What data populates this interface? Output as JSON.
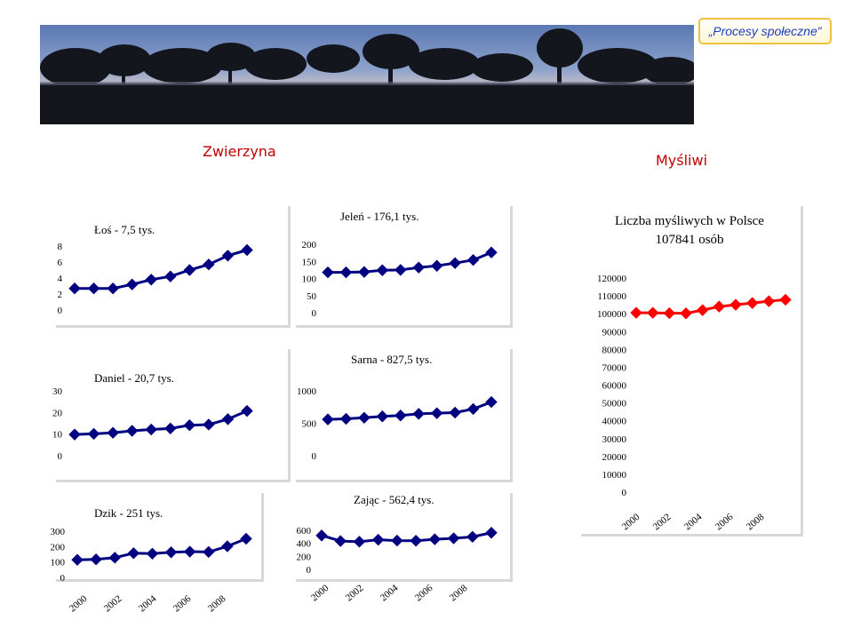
{
  "badge": {
    "label": "„Procesy społeczne”"
  },
  "headings": {
    "left": "Zwierzyna",
    "right": "Myśliwi"
  },
  "colors": {
    "series": "#000080",
    "hunters": "#ff0000",
    "heading": "#c00000",
    "badge_text": "#1f3dbf",
    "badge_border": "#f0c040"
  },
  "chart_data": [
    {
      "id": "los",
      "type": "line",
      "title": "Łoś - 7,5 tys.",
      "x": [
        2000,
        2001,
        2002,
        2003,
        2004,
        2005,
        2006,
        2007,
        2008,
        2009
      ],
      "y": [
        2.7,
        2.7,
        2.7,
        3.2,
        3.8,
        4.2,
        5.0,
        5.7,
        6.8,
        7.5
      ],
      "ylim": [
        0,
        8
      ],
      "yticks": [
        0,
        2,
        4,
        6,
        8
      ],
      "xtick_labels": []
    },
    {
      "id": "jelen",
      "type": "line",
      "title": "Jeleń - 176,1 tys.",
      "x": [
        2000,
        2001,
        2002,
        2003,
        2004,
        2005,
        2006,
        2007,
        2008,
        2009
      ],
      "y": [
        118,
        118,
        119,
        124,
        125,
        132,
        137,
        145,
        154,
        176.1
      ],
      "ylim": [
        0,
        200
      ],
      "yticks": [
        0,
        50,
        100,
        150,
        200
      ],
      "xtick_labels": []
    },
    {
      "id": "daniel",
      "type": "line",
      "title": "Daniel - 20,7 tys.",
      "x": [
        2000,
        2001,
        2002,
        2003,
        2004,
        2005,
        2006,
        2007,
        2008,
        2009
      ],
      "y": [
        9.8,
        10.1,
        10.6,
        11.5,
        12.1,
        12.6,
        14.1,
        14.4,
        16.9,
        20.7
      ],
      "ylim": [
        0,
        30
      ],
      "yticks": [
        0,
        10,
        20,
        30
      ],
      "xtick_labels": []
    },
    {
      "id": "sarna",
      "type": "line",
      "title": "Sarna - 827,5 tys.",
      "x": [
        2000,
        2001,
        2002,
        2003,
        2004,
        2005,
        2006,
        2007,
        2008,
        2009
      ],
      "y": [
        560,
        568,
        585,
        606,
        620,
        645,
        655,
        664,
        720,
        827.5
      ],
      "ylim": [
        0,
        1000
      ],
      "yticks": [
        0,
        500,
        1000
      ],
      "xtick_labels": []
    },
    {
      "id": "dzik",
      "type": "line",
      "title": "Dzik - 251 tys.",
      "x": [
        2000,
        2001,
        2002,
        2003,
        2004,
        2005,
        2006,
        2007,
        2008,
        2009
      ],
      "y": [
        114,
        117,
        128,
        157,
        154,
        163,
        167,
        165,
        202,
        251
      ],
      "ylim": [
        0,
        300
      ],
      "yticks": [
        0,
        100,
        200,
        300
      ],
      "xtick_labels": [
        "2000",
        "2002",
        "2004",
        "2006",
        "2008"
      ]
    },
    {
      "id": "zajac",
      "type": "line",
      "title": "Zając - 562,4 tys.",
      "x": [
        2000,
        2001,
        2002,
        2003,
        2004,
        2005,
        2006,
        2007,
        2008,
        2009
      ],
      "y": [
        520,
        435,
        425,
        455,
        442,
        440,
        462,
        477,
        500,
        562.4
      ],
      "ylim": [
        0,
        600
      ],
      "yticks": [
        0,
        200,
        400,
        600
      ],
      "xtick_labels": [
        "2000",
        "2002",
        "2004",
        "2006",
        "2008"
      ]
    },
    {
      "id": "mysliwi",
      "type": "line",
      "title": "Liczba myśliwych w Polsce",
      "subtitle": "107841 osób",
      "x": [
        2000,
        2001,
        2002,
        2003,
        2004,
        2005,
        2006,
        2007,
        2008,
        2009
      ],
      "y": [
        100500,
        100500,
        100300,
        100200,
        102000,
        104000,
        105000,
        106000,
        107000,
        107841
      ],
      "ylim": [
        0,
        120000
      ],
      "yticks": [
        0,
        10000,
        20000,
        30000,
        40000,
        50000,
        60000,
        70000,
        80000,
        90000,
        100000,
        110000,
        120000
      ],
      "xtick_labels": [
        "2000",
        "2002",
        "2004",
        "2006",
        "2008"
      ]
    }
  ]
}
